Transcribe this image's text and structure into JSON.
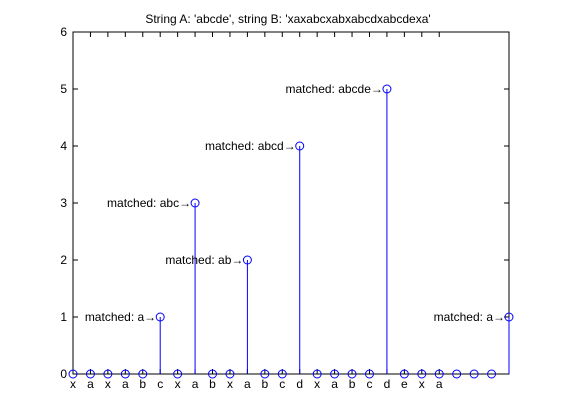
{
  "chart_data": {
    "type": "stem",
    "title": "String A: 'abcde', string B: 'xaxabcxabxabcdxabcdexa'",
    "xlabel": "",
    "ylabel": "",
    "xlim": [
      1,
      26
    ],
    "ylim": [
      0,
      6
    ],
    "yticks": [
      0,
      1,
      2,
      3,
      4,
      5,
      6
    ],
    "grid": false,
    "legend": false,
    "x": [
      1,
      2,
      3,
      4,
      5,
      6,
      7,
      8,
      9,
      10,
      11,
      12,
      13,
      14,
      15,
      16,
      17,
      18,
      19,
      20,
      21,
      22,
      23,
      24,
      25,
      26
    ],
    "values": [
      0,
      0,
      0,
      0,
      0,
      1,
      0,
      3,
      0,
      0,
      2,
      0,
      0,
      4,
      0,
      0,
      0,
      0,
      5,
      0,
      0,
      0,
      0,
      0,
      0,
      1
    ],
    "x_tick_labels": [
      {
        "x": 1,
        "label": "x"
      },
      {
        "x": 2,
        "label": "a"
      },
      {
        "x": 3,
        "label": "x"
      },
      {
        "x": 4,
        "label": "a"
      },
      {
        "x": 5,
        "label": "b"
      },
      {
        "x": 6,
        "label": "c"
      },
      {
        "x": 7,
        "label": "x"
      },
      {
        "x": 8,
        "label": "a"
      },
      {
        "x": 9,
        "label": "b"
      },
      {
        "x": 10,
        "label": "x"
      },
      {
        "x": 11,
        "label": "a"
      },
      {
        "x": 12,
        "label": "b"
      },
      {
        "x": 13,
        "label": "c"
      },
      {
        "x": 14,
        "label": "d"
      },
      {
        "x": 15,
        "label": "x"
      },
      {
        "x": 16,
        "label": "a"
      },
      {
        "x": 17,
        "label": "b"
      },
      {
        "x": 18,
        "label": "c"
      },
      {
        "x": 19,
        "label": "d"
      },
      {
        "x": 20,
        "label": "e"
      },
      {
        "x": 21,
        "label": "x"
      },
      {
        "x": 22,
        "label": "a"
      }
    ],
    "annotations": [
      {
        "x": 6,
        "y": 1,
        "text": "matched: a→"
      },
      {
        "x": 8,
        "y": 3,
        "text": "matched: abc→"
      },
      {
        "x": 11,
        "y": 2,
        "text": "matched: ab→"
      },
      {
        "x": 14,
        "y": 4,
        "text": "matched: abcd→"
      },
      {
        "x": 19,
        "y": 5,
        "text": "matched: abcde→"
      },
      {
        "x": 26,
        "y": 1,
        "text": "matched: a→"
      }
    ],
    "colors": {
      "stem": "#0000ff",
      "axes": "#000000",
      "background": "#ffffff"
    }
  }
}
